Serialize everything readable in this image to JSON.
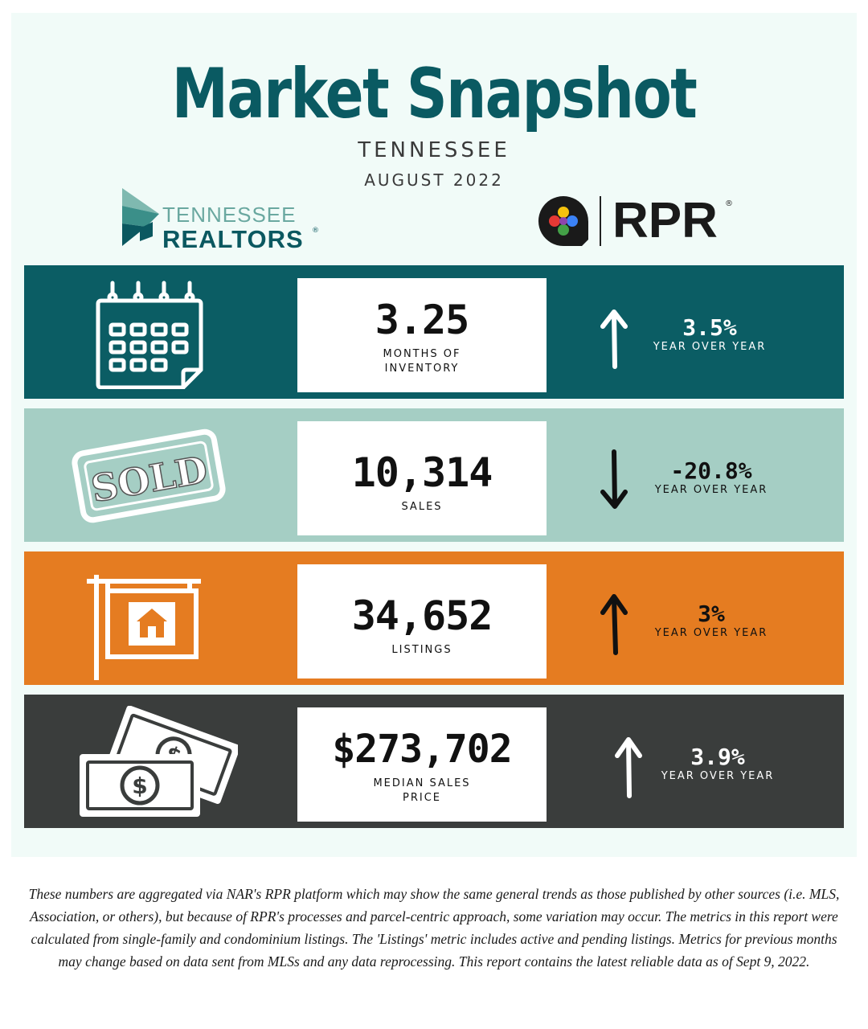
{
  "header": {
    "title": "Market Snapshot",
    "subtitle": "TENNESSEE",
    "date": "AUGUST 2022"
  },
  "logos": {
    "tennessee_realtors": {
      "line1": "TENNESSEE",
      "line2": "REALTORS",
      "mark": "®"
    },
    "rpr": {
      "word": "RPR",
      "mark": "®"
    }
  },
  "colors": {
    "title": "#0a5a62",
    "row_inventory": "#0b5d64",
    "row_sales": "#a5cec4",
    "row_listings": "#e57c21",
    "row_price": "#3a3d3c"
  },
  "metrics": [
    {
      "icon": "calendar-icon",
      "value": "3.25",
      "label_lines": [
        "MONTHS OF",
        "INVENTORY"
      ],
      "direction": "up",
      "change": "3.5%",
      "change_label": "YEAR OVER YEAR"
    },
    {
      "icon": "sold-stamp-icon",
      "value": "10,314",
      "label_lines": [
        "SALES"
      ],
      "direction": "down",
      "change": "-20.8%",
      "change_label": "YEAR OVER YEAR"
    },
    {
      "icon": "house-sign-icon",
      "value": "34,652",
      "label_lines": [
        "LISTINGS"
      ],
      "direction": "up",
      "change": "3%",
      "change_label": "YEAR OVER YEAR"
    },
    {
      "icon": "money-icon",
      "value": "$273,702",
      "label_lines": [
        "MEDIAN SALES",
        "PRICE"
      ],
      "direction": "up",
      "change": "3.9%",
      "change_label": "YEAR OVER YEAR"
    }
  ],
  "sold_stamp_text": "SOLD",
  "footer": "These numbers are aggregated via NAR's RPR platform which may show the same general trends as those published by other sources (i.e. MLS, Association, or others), but because of RPR's processes and parcel-centric approach, some variation may occur. The metrics in this report were calculated from single-family and condominium listings. The 'Listings' metric includes active and pending listings. Metrics for previous months may change based on data sent from MLSs and any data reprocessing. This report contains the latest reliable data as of Sept 9, 2022."
}
